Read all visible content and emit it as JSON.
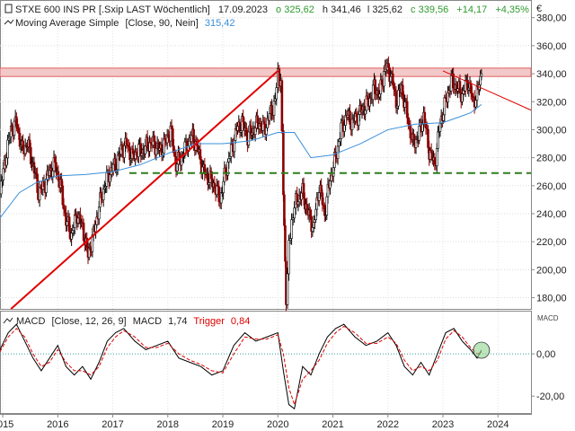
{
  "header": {
    "instrument": "STXE 600 INS PR [.Sxip LAST Wöchentlich]",
    "date": "17.09.2023",
    "open": "o 325,62",
    "high": "h 341,46",
    "low": "l 325,62",
    "close": "c 339,56",
    "change": "+14,17",
    "change_pct": "+4,35%",
    "currency": "€"
  },
  "indicator_ma": {
    "label": "Moving Average Simple",
    "params": "[Close, 90, Nein]",
    "value": "315,42"
  },
  "indicator_macd": {
    "label": "MACD",
    "params": "[Close, 12, 26, 9]",
    "macd_label": "MACD",
    "macd_value": "1,74",
    "trigger_label": "Trigger",
    "trigger_value": "0,84",
    "axis_title": "MACD"
  },
  "colors": {
    "candle": "#000000",
    "candle_down": "#8b0000",
    "ma": "#3b8fd9",
    "trendline": "#e00000",
    "band": "#e06060",
    "support": "#2e7d1e",
    "macd_line": "#000000",
    "trigger": "#e00000",
    "zero_line": "#3aa0a0",
    "marker": "#8fd48f"
  },
  "chart_data": [
    {
      "type": "candlestick",
      "title": "STXE 600 INS PR [.Sxip LAST Wöchentlich]",
      "x_ticks": [
        "2015",
        "2016",
        "2017",
        "2018",
        "2019",
        "2020",
        "2021",
        "2022",
        "2023",
        "2024"
      ],
      "y_ticks": [
        "180,00",
        "200,00",
        "220,00",
        "240,00",
        "260,00",
        "280,00",
        "300,00",
        "320,00",
        "340,00",
        "360,00",
        "380,00"
      ],
      "ylim": [
        172,
        392
      ],
      "xlim": [
        2014.95,
        2024.6
      ],
      "close_series": {
        "x": [
          2014.95,
          2015.05,
          2015.15,
          2015.25,
          2015.35,
          2015.45,
          2015.55,
          2015.65,
          2015.75,
          2015.85,
          2015.95,
          2016.05,
          2016.15,
          2016.25,
          2016.35,
          2016.45,
          2016.55,
          2016.65,
          2016.75,
          2016.85,
          2016.95,
          2017.05,
          2017.15,
          2017.25,
          2017.35,
          2017.45,
          2017.55,
          2017.65,
          2017.75,
          2017.85,
          2017.95,
          2018.05,
          2018.15,
          2018.25,
          2018.35,
          2018.45,
          2018.55,
          2018.65,
          2018.75,
          2018.85,
          2018.95,
          2019.05,
          2019.15,
          2019.25,
          2019.35,
          2019.45,
          2019.55,
          2019.65,
          2019.75,
          2019.85,
          2019.95,
          2020.0,
          2020.05,
          2020.1,
          2020.15,
          2020.2,
          2020.25,
          2020.3,
          2020.35,
          2020.45,
          2020.55,
          2020.65,
          2020.75,
          2020.85,
          2020.95,
          2021.05,
          2021.15,
          2021.25,
          2021.35,
          2021.45,
          2021.55,
          2021.65,
          2021.75,
          2021.85,
          2021.95,
          2022.05,
          2022.15,
          2022.25,
          2022.35,
          2022.45,
          2022.55,
          2022.65,
          2022.75,
          2022.85,
          2022.95,
          2023.05,
          2023.15,
          2023.25,
          2023.35,
          2023.45,
          2023.55,
          2023.62,
          2023.7
        ],
        "y": [
          255,
          280,
          300,
          305,
          285,
          290,
          275,
          255,
          260,
          270,
          275,
          260,
          235,
          225,
          240,
          230,
          210,
          225,
          245,
          260,
          270,
          275,
          285,
          290,
          280,
          285,
          285,
          290,
          290,
          285,
          290,
          300,
          275,
          280,
          290,
          295,
          285,
          270,
          265,
          260,
          250,
          270,
          285,
          300,
          305,
          295,
          300,
          305,
          300,
          310,
          320,
          340,
          335,
          255,
          180,
          215,
          235,
          245,
          250,
          255,
          240,
          230,
          260,
          240,
          265,
          280,
          300,
          310,
          305,
          310,
          315,
          320,
          330,
          325,
          345,
          340,
          320,
          330,
          310,
          290,
          295,
          310,
          285,
          275,
          305,
          320,
          335,
          330,
          325,
          335,
          320,
          325,
          340
        ]
      },
      "moving_average": {
        "name": "Moving Average Simple",
        "x": [
          2014.95,
          2015.3,
          2015.6,
          2016.0,
          2016.5,
          2017.0,
          2017.5,
          2018.0,
          2018.5,
          2019.0,
          2019.5,
          2020.0,
          2020.3,
          2020.6,
          2021.0,
          2021.5,
          2022.0,
          2022.5,
          2023.0,
          2023.5,
          2023.7
        ],
        "y": [
          237,
          255,
          262,
          267,
          268,
          270,
          275,
          283,
          290,
          290,
          292,
          298,
          298,
          280,
          282,
          290,
          300,
          304,
          305,
          312,
          318
        ]
      },
      "trendlines": [
        {
          "kind": "rising",
          "x": [
            2015.15,
            2020.0
          ],
          "y": [
            172,
            342
          ]
        },
        {
          "kind": "falling",
          "x": [
            2023.0,
            2024.6
          ],
          "y": [
            342,
            314
          ]
        },
        {
          "kind": "resistance_band",
          "y_low": 338,
          "y_high": 344
        },
        {
          "kind": "support",
          "y": 269,
          "x_start": 2017.3
        }
      ]
    },
    {
      "type": "line",
      "title": "MACD [Close, 12, 26, 9]",
      "y_ticks": [
        "0,00",
        "-20,00"
      ],
      "ylim": [
        -28,
        20
      ],
      "series": [
        {
          "name": "MACD",
          "x": [
            2014.95,
            2015.1,
            2015.25,
            2015.4,
            2015.55,
            2015.7,
            2015.85,
            2016.0,
            2016.15,
            2016.3,
            2016.45,
            2016.6,
            2016.75,
            2016.9,
            2017.05,
            2017.2,
            2017.4,
            2017.6,
            2017.8,
            2018.0,
            2018.2,
            2018.4,
            2018.6,
            2018.8,
            2019.0,
            2019.2,
            2019.4,
            2019.6,
            2019.8,
            2020.0,
            2020.1,
            2020.2,
            2020.3,
            2020.45,
            2020.6,
            2020.75,
            2020.9,
            2021.05,
            2021.2,
            2021.4,
            2021.6,
            2021.8,
            2022.0,
            2022.15,
            2022.3,
            2022.45,
            2022.6,
            2022.75,
            2022.9,
            2023.05,
            2023.2,
            2023.35,
            2023.5,
            2023.62,
            2023.7
          ],
          "y": [
            2,
            10,
            14,
            6,
            -2,
            -8,
            -2,
            4,
            -6,
            -10,
            -6,
            -12,
            -4,
            6,
            10,
            12,
            6,
            2,
            4,
            6,
            -2,
            -4,
            -6,
            -10,
            -8,
            4,
            10,
            6,
            8,
            10,
            -8,
            -24,
            -26,
            -6,
            -10,
            0,
            8,
            12,
            14,
            8,
            4,
            6,
            10,
            4,
            -6,
            -10,
            -4,
            -10,
            0,
            10,
            12,
            6,
            2,
            -2,
            1.74
          ]
        },
        {
          "name": "Trigger",
          "x": [
            2014.95,
            2015.1,
            2015.25,
            2015.4,
            2015.55,
            2015.7,
            2015.85,
            2016.0,
            2016.15,
            2016.3,
            2016.45,
            2016.6,
            2016.75,
            2016.9,
            2017.05,
            2017.2,
            2017.4,
            2017.6,
            2017.8,
            2018.0,
            2018.2,
            2018.4,
            2018.6,
            2018.8,
            2019.0,
            2019.2,
            2019.4,
            2019.6,
            2019.8,
            2020.0,
            2020.1,
            2020.2,
            2020.3,
            2020.45,
            2020.6,
            2020.75,
            2020.9,
            2021.05,
            2021.2,
            2021.4,
            2021.6,
            2021.8,
            2022.0,
            2022.15,
            2022.3,
            2022.45,
            2022.6,
            2022.75,
            2022.9,
            2023.05,
            2023.2,
            2023.35,
            2023.5,
            2023.62,
            2023.7
          ],
          "y": [
            1,
            8,
            12,
            8,
            0,
            -6,
            -4,
            2,
            -4,
            -8,
            -8,
            -10,
            -6,
            3,
            8,
            11,
            8,
            3,
            3,
            5,
            0,
            -3,
            -5,
            -8,
            -9,
            0,
            8,
            7,
            7,
            9,
            0,
            -16,
            -24,
            -12,
            -8,
            -3,
            5,
            10,
            13,
            10,
            5,
            5,
            8,
            5,
            -3,
            -8,
            -6,
            -8,
            -3,
            7,
            11,
            8,
            3,
            0,
            0.84
          ]
        }
      ]
    }
  ]
}
